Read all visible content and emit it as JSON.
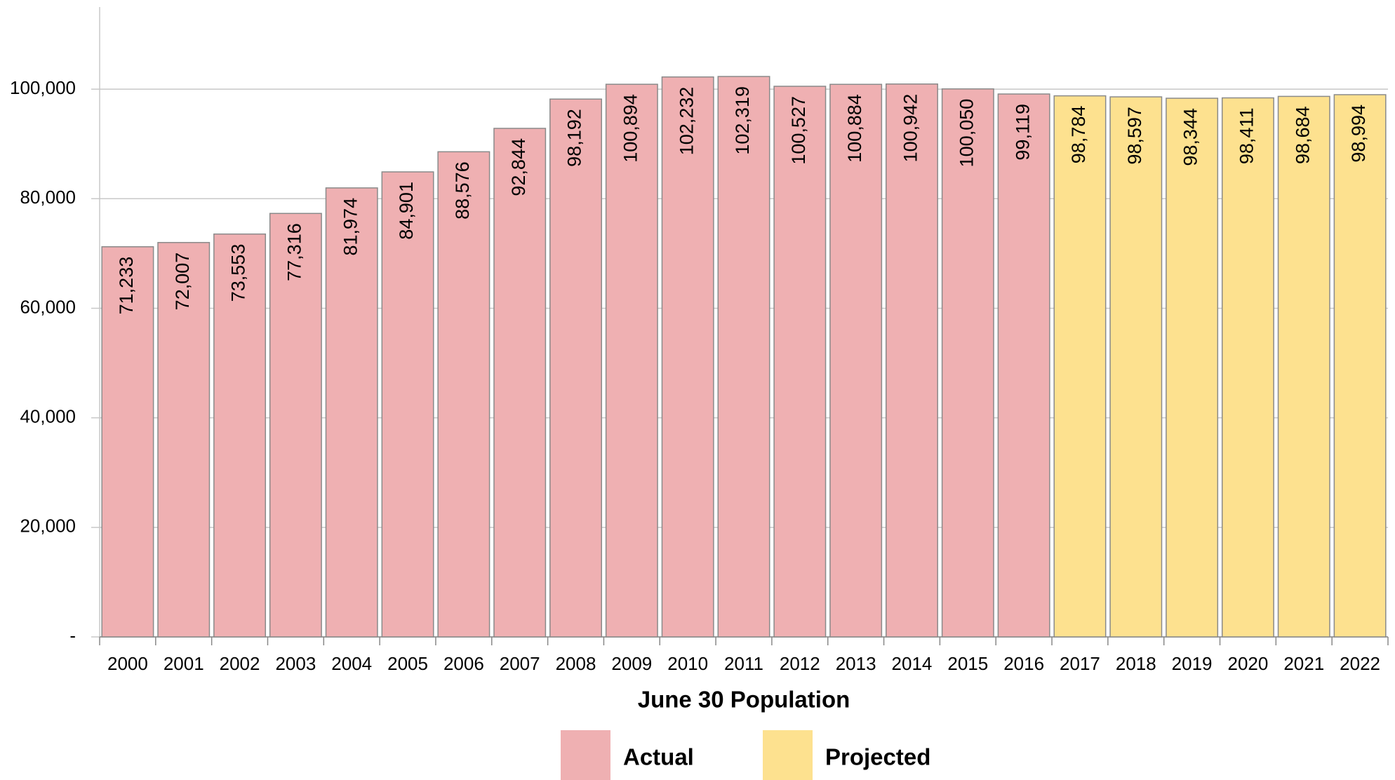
{
  "chart_data": {
    "type": "bar",
    "categories": [
      "2000",
      "2001",
      "2002",
      "2003",
      "2004",
      "2005",
      "2006",
      "2007",
      "2008",
      "2009",
      "2010",
      "2011",
      "2012",
      "2013",
      "2014",
      "2015",
      "2016",
      "2017",
      "2018",
      "2019",
      "2020",
      "2021",
      "2022"
    ],
    "series": [
      {
        "name": "Actual",
        "color": "#efb0b2",
        "values": [
          71233,
          72007,
          73553,
          77316,
          81974,
          84901,
          88576,
          92844,
          98192,
          100894,
          102232,
          102319,
          100527,
          100884,
          100942,
          100050,
          99119,
          null,
          null,
          null,
          null,
          null,
          null
        ],
        "value_labels": [
          "71,233",
          "72,007",
          "73,553",
          "77,316",
          "81,974",
          "84,901",
          "88,576",
          "92,844",
          "98,192",
          "100,894",
          "102,232",
          "102,319",
          "100,527",
          "100,884",
          "100,942",
          "100,050",
          "99,119",
          null,
          null,
          null,
          null,
          null,
          null
        ]
      },
      {
        "name": "Projected",
        "color": "#fde18f",
        "values": [
          null,
          null,
          null,
          null,
          null,
          null,
          null,
          null,
          null,
          null,
          null,
          null,
          null,
          null,
          null,
          null,
          null,
          98784,
          98597,
          98344,
          98411,
          98684,
          98994
        ],
        "value_labels": [
          null,
          null,
          null,
          null,
          null,
          null,
          null,
          null,
          null,
          null,
          null,
          null,
          null,
          null,
          null,
          null,
          null,
          "98,784",
          "98,597",
          "98,344",
          "98,411",
          "98,684",
          "98,994"
        ]
      }
    ],
    "x_label": "June 30 Population",
    "ylim": [
      0,
      115000
    ],
    "yticks": [
      {
        "value": 0,
        "label": "-"
      },
      {
        "value": 20000,
        "label": "20,000"
      },
      {
        "value": 40000,
        "label": "40,000"
      },
      {
        "value": 60000,
        "label": "60,000"
      },
      {
        "value": 80000,
        "label": "80,000"
      },
      {
        "value": 100000,
        "label": "100,000"
      }
    ],
    "grid": true
  }
}
